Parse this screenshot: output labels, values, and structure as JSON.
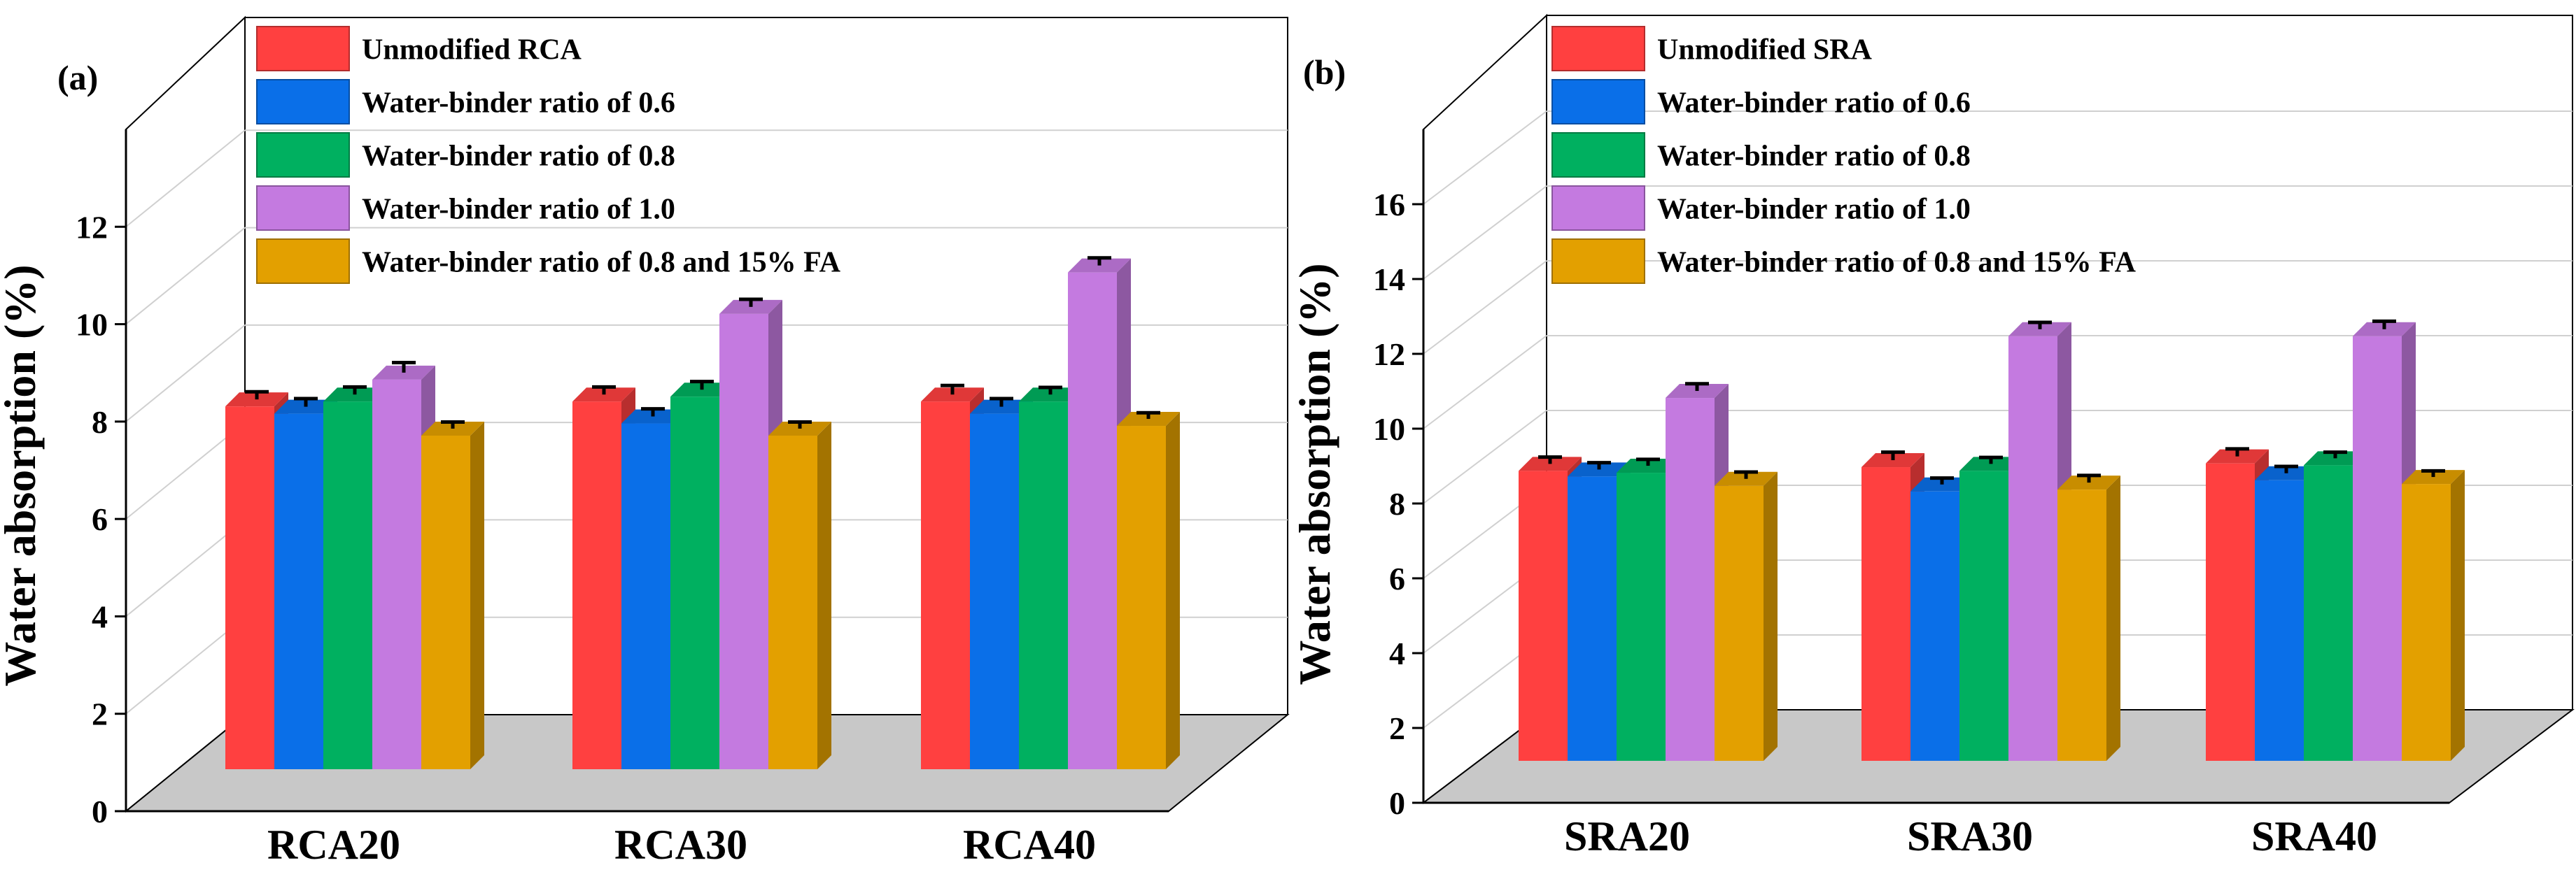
{
  "chart_data": [
    {
      "type": "bar",
      "panel_label": "(a)",
      "title": "",
      "xlabel": "",
      "ylabel": "Water absorption (%)",
      "ylim": [
        0,
        14
      ],
      "yticks": [
        0,
        2,
        4,
        6,
        8,
        10,
        12
      ],
      "categories": [
        "RCA20",
        "RCA30",
        "RCA40"
      ],
      "legend_position": "top",
      "series": [
        {
          "name": "Unmodified RCA",
          "color": "#ff4040",
          "values": [
            7.45,
            7.55,
            7.55
          ],
          "errors": [
            0.07,
            0.07,
            0.1
          ]
        },
        {
          "name": "Water-binder ratio of 0.6",
          "color": "#0a6fe8",
          "values": [
            7.3,
            7.1,
            7.3
          ],
          "errors": [
            0.08,
            0.07,
            0.08
          ]
        },
        {
          "name": "Water-binder ratio of 0.8",
          "color": "#00b060",
          "values": [
            7.55,
            7.65,
            7.55
          ],
          "errors": [
            0.07,
            0.08,
            0.06
          ]
        },
        {
          "name": "Water-binder ratio of 1.0",
          "color": "#c47ae0",
          "values": [
            8.0,
            9.35,
            10.2
          ],
          "errors": [
            0.12,
            0.07,
            0.07
          ]
        },
        {
          "name": "Water-binder ratio of 0.8 and 15% FA",
          "color": "#e3a000",
          "values": [
            6.85,
            6.85,
            7.05
          ],
          "errors": [
            0.05,
            0.05,
            0.04
          ]
        }
      ]
    },
    {
      "type": "bar",
      "panel_label": "(b)",
      "title": "",
      "xlabel": "",
      "ylabel": "Water absorption (%)",
      "ylim": [
        0,
        18
      ],
      "yticks": [
        0,
        2,
        4,
        6,
        8,
        10,
        12,
        14,
        16
      ],
      "categories": [
        "SRA20",
        "SRA30",
        "SRA40"
      ],
      "legend_position": "top",
      "series": [
        {
          "name": "Unmodified SRA",
          "color": "#ff4040",
          "values": [
            7.75,
            7.85,
            7.95
          ],
          "errors": [
            0.07,
            0.1,
            0.09
          ]
        },
        {
          "name": "Water-binder ratio of 0.6",
          "color": "#0a6fe8",
          "values": [
            7.6,
            7.2,
            7.5
          ],
          "errors": [
            0.07,
            0.06,
            0.07
          ]
        },
        {
          "name": "Water-binder ratio of 0.8",
          "color": "#00b060",
          "values": [
            7.7,
            7.75,
            7.9
          ],
          "errors": [
            0.06,
            0.06,
            0.05
          ]
        },
        {
          "name": "Water-binder ratio of 1.0",
          "color": "#c47ae0",
          "values": [
            9.7,
            11.35,
            11.35
          ],
          "errors": [
            0.08,
            0.07,
            0.1
          ]
        },
        {
          "name": "Water-binder ratio of 0.8 and 15% FA",
          "color": "#e3a000",
          "values": [
            7.35,
            7.25,
            7.4
          ],
          "errors": [
            0.07,
            0.08,
            0.05
          ]
        }
      ]
    }
  ]
}
